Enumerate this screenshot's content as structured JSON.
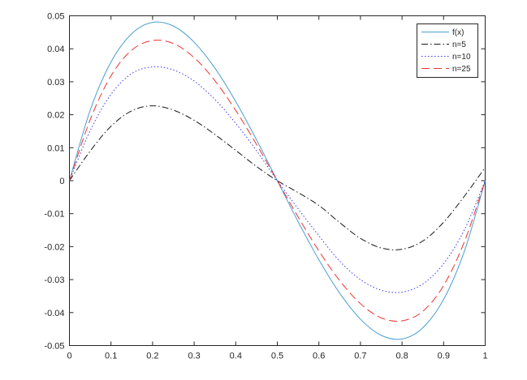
{
  "chart_data": {
    "type": "line",
    "title": "",
    "xlabel": "",
    "ylabel": "",
    "xlim": [
      0,
      1
    ],
    "ylim": [
      -0.05,
      0.05
    ],
    "xticks": [
      0,
      0.1,
      0.2,
      0.3,
      0.4,
      0.5,
      0.6,
      0.7,
      0.8,
      0.9,
      1
    ],
    "xtick_labels": [
      "0",
      "0.1",
      "0.2",
      "0.3",
      "0.4",
      "0.5",
      "0.6",
      "0.7",
      "0.8",
      "0.9",
      "1"
    ],
    "yticks": [
      0.05,
      0.04,
      0.03,
      0.02,
      0.01,
      0,
      -0.01,
      -0.02,
      -0.03,
      -0.04,
      -0.05
    ],
    "ytick_labels": [
      "0.05",
      "0.04",
      "0.03",
      "0.02",
      "0.01",
      "0",
      "-0.01",
      "-0.02",
      "-0.03",
      "-0.04",
      "-0.05"
    ],
    "grid": false,
    "legend_position": "top-right",
    "x": [
      0,
      0.05,
      0.1,
      0.15,
      0.2,
      0.25,
      0.3,
      0.35,
      0.4,
      0.45,
      0.5,
      0.55,
      0.6,
      0.65,
      0.7,
      0.75,
      0.8,
      0.85,
      0.9,
      0.95,
      1
    ],
    "series": [
      {
        "name": "f(x)",
        "color": "#4a9fd0",
        "style": "solid",
        "values": [
          0,
          0.0214,
          0.036,
          0.0446,
          0.048,
          0.0469,
          0.042,
          0.0341,
          0.024,
          0.0124,
          0,
          -0.0124,
          -0.024,
          -0.0341,
          -0.042,
          -0.0469,
          -0.048,
          -0.0446,
          -0.036,
          -0.0214,
          0
        ]
      },
      {
        "name": "n=5",
        "color": "#1a1a1a",
        "style": "dashdot",
        "values": [
          0,
          0.009,
          0.0165,
          0.0212,
          0.0227,
          0.0214,
          0.0183,
          0.014,
          0.0092,
          0.0043,
          0,
          -0.0036,
          -0.0075,
          -0.0127,
          -0.0175,
          -0.0204,
          -0.0208,
          -0.0183,
          -0.0126,
          -0.0047,
          0.004
        ]
      },
      {
        "name": "n=10",
        "color": "#3a3af0",
        "style": "dotted",
        "values": [
          0,
          0.0152,
          0.0262,
          0.0325,
          0.0345,
          0.0336,
          0.0302,
          0.0246,
          0.0174,
          0.0091,
          0,
          -0.0085,
          -0.0167,
          -0.0244,
          -0.03,
          -0.0332,
          -0.0338,
          -0.0313,
          -0.0252,
          -0.0149,
          0
        ]
      },
      {
        "name": "n=25",
        "color": "#ee3333",
        "style": "dashed",
        "values": [
          0,
          0.0185,
          0.0318,
          0.0396,
          0.0425,
          0.0416,
          0.0373,
          0.0303,
          0.0213,
          0.011,
          0,
          -0.011,
          -0.0213,
          -0.0303,
          -0.0373,
          -0.0416,
          -0.0425,
          -0.0396,
          -0.0318,
          -0.0185,
          0
        ]
      }
    ]
  }
}
